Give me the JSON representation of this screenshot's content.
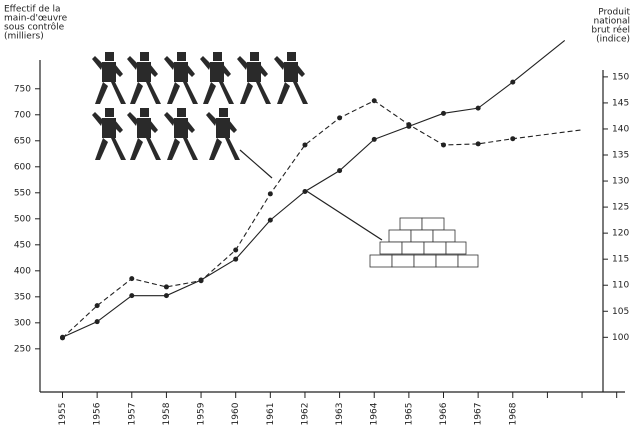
{
  "chart_data": {
    "type": "line",
    "y_label": [
      "Effectif de la",
      "main-d'œuvre",
      "sous contrôle",
      "(milliers)"
    ],
    "y2_label": [
      "Produit",
      "national",
      "brut réel",
      "(indice)"
    ],
    "xlim": [
      1954.35,
      1971.5
    ],
    "xticks": [
      1955,
      1956,
      1957,
      1958,
      1959,
      1960,
      1961,
      1962,
      1963,
      1964,
      1965,
      1966,
      1967,
      1968,
      {
        "value": 1969,
        "label": null
      },
      {
        "value": 1970,
        "label": null
      },
      {
        "value": 1971,
        "label": null
      }
    ],
    "ylim": [
      167,
      863
    ],
    "yticks": [
      250,
      300,
      350,
      400,
      450,
      500,
      550,
      600,
      650,
      700,
      750
    ],
    "y2lim": [
      89.5,
      159
    ],
    "y2ticks": [
      100,
      105,
      110,
      115,
      120,
      125,
      130,
      135,
      140,
      145,
      150
    ],
    "series": [
      {
        "name": null,
        "color": "#222",
        "dash": true,
        "x": [
          1955,
          1956,
          1957,
          1958,
          1959,
          1960,
          1961,
          1962,
          1963,
          1964,
          1965,
          1966,
          1967,
          1968,
          1970
        ],
        "values": [
          271,
          333,
          385,
          369,
          381,
          440,
          548,
          642,
          694,
          727,
          681,
          642,
          644,
          654,
          671
        ]
      },
      {
        "name": null,
        "color": "#222",
        "dash": false,
        "axis": "y2",
        "x": [
          1955,
          1956,
          1957,
          1958,
          1959,
          1960,
          1961,
          1962,
          1963,
          1964,
          1965,
          1966,
          1967,
          1968,
          1969.5
        ],
        "values": [
          100,
          103,
          108,
          108,
          111,
          115,
          122.5,
          128,
          132,
          138,
          140.5,
          143,
          144,
          149,
          157
        ]
      }
    ]
  }
}
